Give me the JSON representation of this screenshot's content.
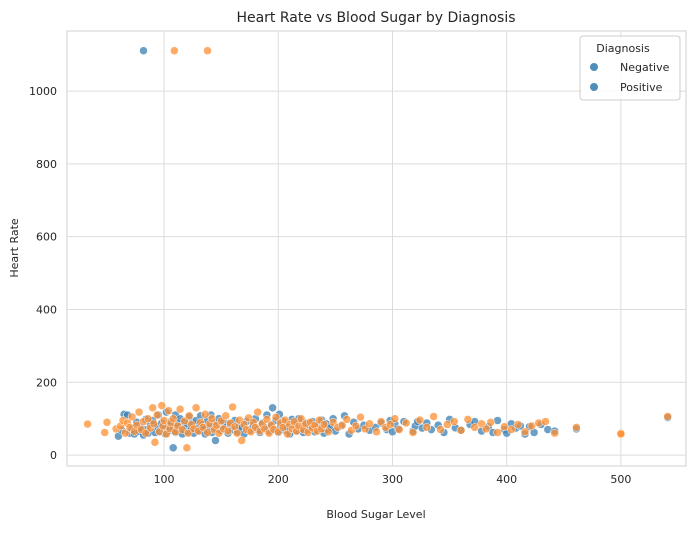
{
  "chart_data": {
    "type": "scatter",
    "title": "Heart Rate vs Blood Sugar by Diagnosis",
    "xlabel": "Blood Sugar Level",
    "ylabel": "Heart Rate",
    "xlim": [
      15,
      557
    ],
    "ylim": [
      -30,
      1165
    ],
    "xticks": [
      100,
      200,
      300,
      400,
      500
    ],
    "yticks": [
      0,
      200,
      400,
      600,
      800,
      1000
    ],
    "grid": true,
    "legend": {
      "title": "Diagnosis",
      "placement": "top-right",
      "entries": [
        {
          "label": "Negative",
          "color": "#4f8dba"
        },
        {
          "label": "Positive",
          "color": "#4f8dba"
        }
      ]
    },
    "series": [
      {
        "name": "Negative",
        "color": "#3a7fb3",
        "points": [
          [
            82,
            1111
          ],
          [
            60,
            52
          ],
          [
            63,
            68
          ],
          [
            65,
            112
          ],
          [
            68,
            110
          ],
          [
            70,
            60
          ],
          [
            72,
            72
          ],
          [
            74,
            58
          ],
          [
            76,
            90
          ],
          [
            78,
            65
          ],
          [
            80,
            75
          ],
          [
            82,
            55
          ],
          [
            84,
            98
          ],
          [
            85,
            70
          ],
          [
            86,
            60
          ],
          [
            88,
            85
          ],
          [
            90,
            95
          ],
          [
            92,
            62
          ],
          [
            94,
            78
          ],
          [
            95,
            110
          ],
          [
            96,
            65
          ],
          [
            98,
            88
          ],
          [
            100,
            72
          ],
          [
            101,
            58
          ],
          [
            102,
            118
          ],
          [
            104,
            80
          ],
          [
            105,
            67
          ],
          [
            106,
            92
          ],
          [
            108,
            20
          ],
          [
            108,
            75
          ],
          [
            110,
            110
          ],
          [
            110,
            62
          ],
          [
            112,
            85
          ],
          [
            114,
            100
          ],
          [
            115,
            70
          ],
          [
            116,
            58
          ],
          [
            118,
            90
          ],
          [
            120,
            80
          ],
          [
            121,
            64
          ],
          [
            122,
            105
          ],
          [
            124,
            72
          ],
          [
            125,
            88
          ],
          [
            126,
            60
          ],
          [
            128,
            95
          ],
          [
            130,
            75
          ],
          [
            131,
            66
          ],
          [
            132,
            108
          ],
          [
            134,
            84
          ],
          [
            135,
            70
          ],
          [
            136,
            58
          ],
          [
            138,
            96
          ],
          [
            140,
            78
          ],
          [
            141,
            110
          ],
          [
            142,
            62
          ],
          [
            144,
            88
          ],
          [
            145,
            40
          ],
          [
            146,
            72
          ],
          [
            148,
            100
          ],
          [
            150,
            68
          ],
          [
            152,
            90
          ],
          [
            154,
            76
          ],
          [
            156,
            60
          ],
          [
            158,
            85
          ],
          [
            160,
            70
          ],
          [
            162,
            95
          ],
          [
            164,
            64
          ],
          [
            166,
            80
          ],
          [
            168,
            74
          ],
          [
            170,
            58
          ],
          [
            172,
            92
          ],
          [
            175,
            68
          ],
          [
            178,
            82
          ],
          [
            180,
            100
          ],
          [
            182,
            70
          ],
          [
            184,
            62
          ],
          [
            186,
            88
          ],
          [
            188,
            76
          ],
          [
            190,
            110
          ],
          [
            192,
            66
          ],
          [
            194,
            84
          ],
          [
            195,
            130
          ],
          [
            196,
            72
          ],
          [
            198,
            95
          ],
          [
            200,
            62
          ],
          [
            201,
            112
          ],
          [
            202,
            80
          ],
          [
            204,
            92
          ],
          [
            206,
            68
          ],
          [
            208,
            76
          ],
          [
            210,
            58
          ],
          [
            212,
            98
          ],
          [
            214,
            84
          ],
          [
            216,
            66
          ],
          [
            218,
            100
          ],
          [
            220,
            72
          ],
          [
            222,
            62
          ],
          [
            224,
            88
          ],
          [
            226,
            70
          ],
          [
            228,
            78
          ],
          [
            230,
            92
          ],
          [
            232,
            64
          ],
          [
            234,
            80
          ],
          [
            236,
            72
          ],
          [
            238,
            96
          ],
          [
            240,
            60
          ],
          [
            242,
            86
          ],
          [
            244,
            70
          ],
          [
            246,
            76
          ],
          [
            248,
            100
          ],
          [
            250,
            66
          ],
          [
            255,
            80
          ],
          [
            258,
            108
          ],
          [
            262,
            58
          ],
          [
            266,
            90
          ],
          [
            270,
            72
          ],
          [
            275,
            82
          ],
          [
            280,
            68
          ],
          [
            285,
            76
          ],
          [
            290,
            88
          ],
          [
            295,
            70
          ],
          [
            298,
            95
          ],
          [
            300,
            64
          ],
          [
            302,
            86
          ],
          [
            305,
            72
          ],
          [
            310,
            92
          ],
          [
            318,
            66
          ],
          [
            320,
            80
          ],
          [
            322,
            92
          ],
          [
            326,
            74
          ],
          [
            330,
            88
          ],
          [
            334,
            70
          ],
          [
            340,
            82
          ],
          [
            345,
            62
          ],
          [
            350,
            98
          ],
          [
            355,
            75
          ],
          [
            360,
            68
          ],
          [
            368,
            84
          ],
          [
            372,
            92
          ],
          [
            378,
            66
          ],
          [
            384,
            78
          ],
          [
            388,
            62
          ],
          [
            392,
            95
          ],
          [
            398,
            70
          ],
          [
            400,
            60
          ],
          [
            404,
            86
          ],
          [
            408,
            74
          ],
          [
            412,
            80
          ],
          [
            416,
            58
          ],
          [
            420,
            78
          ],
          [
            424,
            62
          ],
          [
            430,
            84
          ],
          [
            436,
            70
          ],
          [
            442,
            66
          ],
          [
            461,
            72
          ],
          [
            541,
            103
          ]
        ]
      },
      {
        "name": "Positive",
        "color": "#fd8f33",
        "points": [
          [
            109,
            1111
          ],
          [
            138,
            1111
          ],
          [
            33,
            85
          ],
          [
            48,
            62
          ],
          [
            50,
            90
          ],
          [
            58,
            72
          ],
          [
            62,
            80
          ],
          [
            64,
            95
          ],
          [
            66,
            60
          ],
          [
            68,
            88
          ],
          [
            70,
            76
          ],
          [
            72,
            105
          ],
          [
            74,
            65
          ],
          [
            76,
            82
          ],
          [
            78,
            118
          ],
          [
            80,
            70
          ],
          [
            82,
            92
          ],
          [
            84,
            60
          ],
          [
            86,
            100
          ],
          [
            88,
            74
          ],
          [
            90,
            130
          ],
          [
            91,
            86
          ],
          [
            92,
            35
          ],
          [
            94,
            110
          ],
          [
            96,
            64
          ],
          [
            98,
            136
          ],
          [
            99,
            80
          ],
          [
            100,
            95
          ],
          [
            102,
            58
          ],
          [
            104,
            122
          ],
          [
            105,
            72
          ],
          [
            106,
            88
          ],
          [
            108,
            100
          ],
          [
            110,
            64
          ],
          [
            112,
            80
          ],
          [
            114,
            126
          ],
          [
            116,
            70
          ],
          [
            118,
            94
          ],
          [
            120,
            20
          ],
          [
            121,
            60
          ],
          [
            122,
            108
          ],
          [
            124,
            84
          ],
          [
            126,
            72
          ],
          [
            128,
            130
          ],
          [
            130,
            66
          ],
          [
            132,
            90
          ],
          [
            134,
            76
          ],
          [
            136,
            112
          ],
          [
            138,
            62
          ],
          [
            140,
            86
          ],
          [
            142,
            100
          ],
          [
            144,
            70
          ],
          [
            146,
            82
          ],
          [
            148,
            60
          ],
          [
            150,
            94
          ],
          [
            152,
            72
          ],
          [
            154,
            108
          ],
          [
            156,
            66
          ],
          [
            158,
            88
          ],
          [
            160,
            132
          ],
          [
            162,
            78
          ],
          [
            164,
            60
          ],
          [
            166,
            96
          ],
          [
            168,
            40
          ],
          [
            170,
            84
          ],
          [
            172,
            70
          ],
          [
            174,
            102
          ],
          [
            176,
            64
          ],
          [
            178,
            90
          ],
          [
            180,
            76
          ],
          [
            182,
            118
          ],
          [
            184,
            66
          ],
          [
            186,
            86
          ],
          [
            188,
            72
          ],
          [
            190,
            98
          ],
          [
            192,
            60
          ],
          [
            194,
            82
          ],
          [
            196,
            70
          ],
          [
            198,
            104
          ],
          [
            200,
            64
          ],
          [
            202,
            88
          ],
          [
            204,
            76
          ],
          [
            206,
            96
          ],
          [
            208,
            58
          ],
          [
            210,
            84
          ],
          [
            212,
            72
          ],
          [
            214,
            92
          ],
          [
            216,
            66
          ],
          [
            218,
            80
          ],
          [
            220,
            100
          ],
          [
            222,
            70
          ],
          [
            224,
            86
          ],
          [
            226,
            62
          ],
          [
            228,
            90
          ],
          [
            230,
            74
          ],
          [
            232,
            82
          ],
          [
            234,
            66
          ],
          [
            236,
            96
          ],
          [
            238,
            72
          ],
          [
            240,
            84
          ],
          [
            244,
            64
          ],
          [
            248,
            90
          ],
          [
            252,
            76
          ],
          [
            256,
            82
          ],
          [
            260,
            98
          ],
          [
            264,
            68
          ],
          [
            268,
            80
          ],
          [
            272,
            104
          ],
          [
            276,
            72
          ],
          [
            280,
            86
          ],
          [
            286,
            64
          ],
          [
            290,
            92
          ],
          [
            294,
            76
          ],
          [
            298,
            84
          ],
          [
            302,
            100
          ],
          [
            306,
            70
          ],
          [
            312,
            88
          ],
          [
            318,
            62
          ],
          [
            324,
            96
          ],
          [
            330,
            76
          ],
          [
            336,
            106
          ],
          [
            342,
            70
          ],
          [
            348,
            84
          ],
          [
            354,
            92
          ],
          [
            360,
            68
          ],
          [
            366,
            98
          ],
          [
            372,
            76
          ],
          [
            378,
            86
          ],
          [
            382,
            72
          ],
          [
            386,
            90
          ],
          [
            392,
            62
          ],
          [
            398,
            78
          ],
          [
            404,
            70
          ],
          [
            410,
            84
          ],
          [
            416,
            64
          ],
          [
            422,
            80
          ],
          [
            428,
            88
          ],
          [
            434,
            92
          ],
          [
            442,
            60
          ],
          [
            461,
            76
          ],
          [
            500,
            60
          ],
          [
            500,
            58
          ],
          [
            541,
            106
          ]
        ]
      }
    ]
  }
}
